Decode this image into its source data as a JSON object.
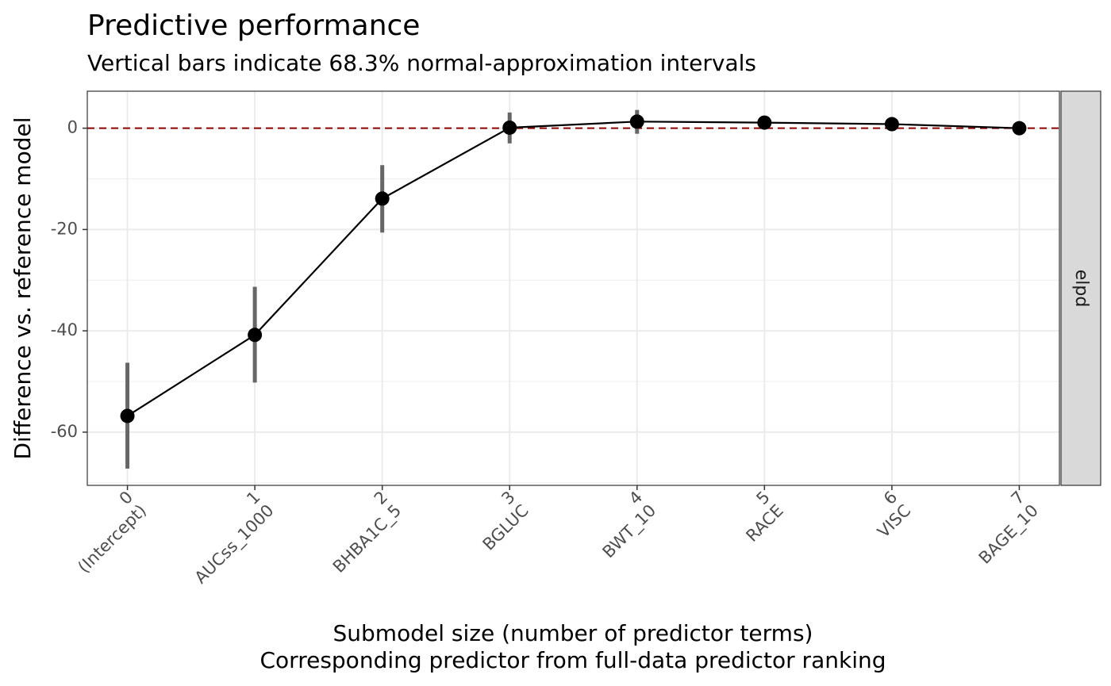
{
  "chart_data": {
    "type": "line",
    "title": "Predictive performance",
    "subtitle": "Vertical bars indicate 68.3% normal-approximation intervals",
    "ylabel": "Difference vs. reference model",
    "xlabel_line1": "Submodel size (number of predictor terms)",
    "xlabel_line2": "Corresponding predictor from full-data predictor ranking",
    "facet_label": "elpd",
    "reference_line": 0,
    "reference_color": "#8b0000",
    "ylim": [
      -70.5,
      7.3
    ],
    "y_ticks": [
      0,
      -20,
      -40,
      -60
    ],
    "y_tick_labels": [
      "0",
      "-20",
      "-40",
      "-60"
    ],
    "x": [
      0,
      1,
      2,
      3,
      4,
      5,
      6,
      7
    ],
    "x_tick_labels": [
      "0",
      "1",
      "2",
      "3",
      "4",
      "5",
      "6",
      "7"
    ],
    "predictor_labels": [
      "(Intercept)",
      "AUCss_1000",
      "BHBA1C_5",
      "BGLUC",
      "BWT_10",
      "RACE",
      "VISC",
      "BAGE_10"
    ],
    "values": [
      -56.8,
      -40.8,
      -13.9,
      0.1,
      1.3,
      1.1,
      0.8,
      0.0
    ],
    "lower": [
      -67.2,
      -50.2,
      -20.6,
      -3.0,
      -1.1,
      1.1,
      0.8,
      0.0
    ],
    "upper": [
      -46.3,
      -31.3,
      -7.3,
      3.1,
      3.6,
      1.1,
      0.8,
      0.0
    ],
    "grid": true
  }
}
